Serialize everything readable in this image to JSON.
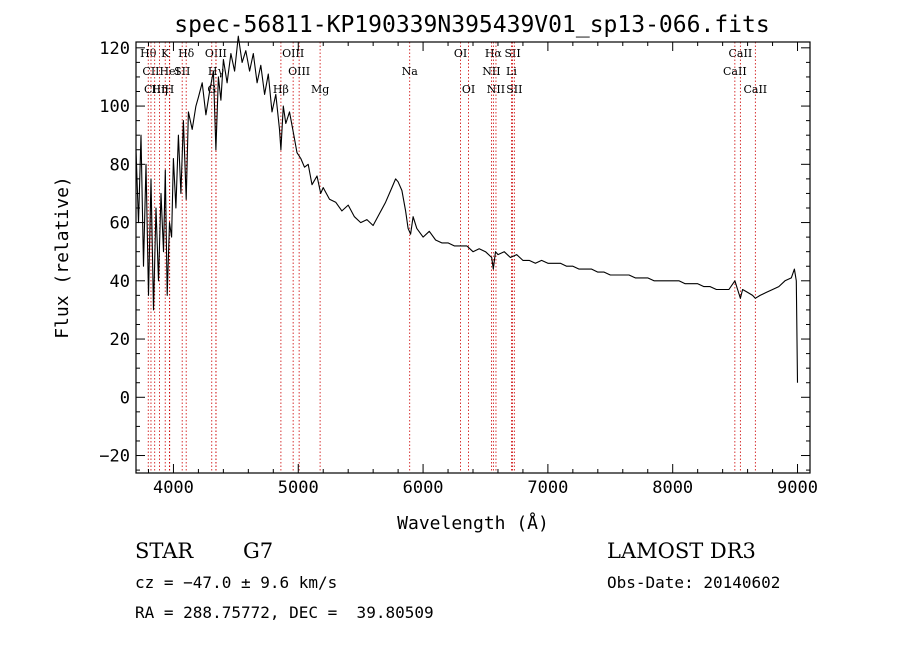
{
  "chart_data": {
    "type": "line",
    "title": "spec-56811-KP190339N395439V01_sp13-066.fits",
    "xlabel": "Wavelength (Å)",
    "ylabel": "Flux (relative)",
    "xlim": [
      3700,
      9100
    ],
    "ylim": [
      -26,
      122
    ],
    "xticks": [
      4000,
      5000,
      6000,
      7000,
      8000,
      9000
    ],
    "yticks": [
      -20,
      0,
      20,
      40,
      60,
      80,
      100,
      120
    ],
    "series": [
      {
        "name": "spectrum",
        "x": [
          3700,
          3720,
          3740,
          3760,
          3780,
          3800,
          3820,
          3840,
          3860,
          3880,
          3900,
          3920,
          3935,
          3950,
          3968,
          3985,
          4000,
          4020,
          4040,
          4060,
          4080,
          4102,
          4120,
          4150,
          4180,
          4200,
          4230,
          4260,
          4290,
          4320,
          4340,
          4360,
          4380,
          4400,
          4430,
          4460,
          4490,
          4520,
          4550,
          4580,
          4610,
          4640,
          4670,
          4700,
          4730,
          4760,
          4790,
          4820,
          4850,
          4861,
          4880,
          4900,
          4930,
          4960,
          4990,
          5020,
          5050,
          5080,
          5110,
          5150,
          5180,
          5200,
          5250,
          5300,
          5350,
          5400,
          5450,
          5500,
          5550,
          5600,
          5650,
          5700,
          5750,
          5780,
          5800,
          5830,
          5860,
          5880,
          5900,
          5920,
          5950,
          6000,
          6050,
          6100,
          6150,
          6200,
          6250,
          6300,
          6350,
          6400,
          6450,
          6500,
          6550,
          6563,
          6580,
          6600,
          6650,
          6700,
          6750,
          6800,
          6850,
          6900,
          6950,
          7000,
          7050,
          7100,
          7150,
          7200,
          7250,
          7300,
          7350,
          7400,
          7450,
          7500,
          7550,
          7600,
          7650,
          7700,
          7750,
          7800,
          7850,
          7900,
          7950,
          8000,
          8050,
          8100,
          8150,
          8200,
          8250,
          8300,
          8350,
          8400,
          8450,
          8498,
          8520,
          8542,
          8560,
          8600,
          8640,
          8662,
          8700,
          8750,
          8800,
          8850,
          8900,
          8950,
          8975,
          8990,
          9000
        ],
        "values": [
          85,
          60,
          90,
          45,
          80,
          35,
          75,
          30,
          65,
          40,
          70,
          50,
          78,
          35,
          60,
          55,
          82,
          65,
          90,
          70,
          95,
          68,
          98,
          92,
          100,
          103,
          108,
          97,
          105,
          112,
          85,
          110,
          102,
          116,
          108,
          118,
          112,
          124,
          115,
          119,
          112,
          118,
          108,
          114,
          104,
          111,
          98,
          104,
          92,
          85,
          100,
          94,
          98,
          91,
          84,
          82,
          79,
          80,
          73,
          76,
          70,
          72,
          68,
          67,
          64,
          66,
          62,
          60,
          61,
          59,
          63,
          67,
          72,
          75,
          74,
          71,
          64,
          58,
          56,
          62,
          58,
          55,
          57,
          54,
          53,
          53,
          52,
          52,
          52,
          50,
          51,
          50,
          48,
          44,
          50,
          49,
          50,
          48,
          49,
          47,
          47,
          46,
          47,
          46,
          46,
          46,
          45,
          45,
          44,
          44,
          44,
          43,
          43,
          42,
          42,
          42,
          42,
          41,
          41,
          41,
          40,
          40,
          40,
          40,
          40,
          39,
          39,
          39,
          38,
          38,
          37,
          37,
          37,
          40,
          37,
          34,
          37,
          36,
          35,
          34,
          35,
          36,
          37,
          38,
          40,
          41,
          44,
          40,
          5
        ]
      }
    ],
    "lines": [
      {
        "name": "Hθ",
        "x": 3798,
        "row": 1
      },
      {
        "name": "CII",
        "x": 3820,
        "row": 2
      },
      {
        "name": "CIII",
        "x": 3850,
        "row": 3
      },
      {
        "name": "Hη",
        "x": 3889,
        "row": 3
      },
      {
        "name": "K",
        "x": 3934,
        "row": 1
      },
      {
        "name": "HeI",
        "x": 3970,
        "row": 2
      },
      {
        "name": "H",
        "x": 3968,
        "row": 3
      },
      {
        "name": "SII",
        "x": 4070,
        "row": 2
      },
      {
        "name": "Hδ",
        "x": 4102,
        "row": 1
      },
      {
        "name": "OIII",
        "x": 4340,
        "row": 1
      },
      {
        "name": "Hγ",
        "x": 4341,
        "row": 2
      },
      {
        "name": "G",
        "x": 4307,
        "row": 3
      },
      {
        "name": "Hβ",
        "x": 4861,
        "row": 3
      },
      {
        "name": "OIII",
        "x": 4959,
        "row": 1
      },
      {
        "name": "OIII",
        "x": 5007,
        "row": 2
      },
      {
        "name": "Mg",
        "x": 5175,
        "row": 3
      },
      {
        "name": "Na",
        "x": 5893,
        "row": 2
      },
      {
        "name": "OI",
        "x": 6300,
        "row": 1
      },
      {
        "name": "OI",
        "x": 6364,
        "row": 3
      },
      {
        "name": "Hα",
        "x": 6563,
        "row": 1
      },
      {
        "name": "NII",
        "x": 6548,
        "row": 2
      },
      {
        "name": "NII",
        "x": 6584,
        "row": 3
      },
      {
        "name": "SII",
        "x": 6717,
        "row": 1
      },
      {
        "name": "Li",
        "x": 6708,
        "row": 2
      },
      {
        "name": "SII",
        "x": 6731,
        "row": 3
      },
      {
        "name": "CaII",
        "x": 8542,
        "row": 1
      },
      {
        "name": "CaII",
        "x": 8498,
        "row": 2
      },
      {
        "name": "CaII",
        "x": 8662,
        "row": 3
      }
    ]
  },
  "info": {
    "object_class": "STAR",
    "subclass": "G7",
    "survey": "LAMOST DR3",
    "cz": "cz = −47.0 ± 9.6 km/s",
    "obs_date": "Obs-Date: 20140602",
    "coords": "RA = 288.75772, DEC =  39.80509"
  },
  "colors": {
    "spectrum": "#000000",
    "line_markers": "#cc0000",
    "axis": "#000000"
  }
}
